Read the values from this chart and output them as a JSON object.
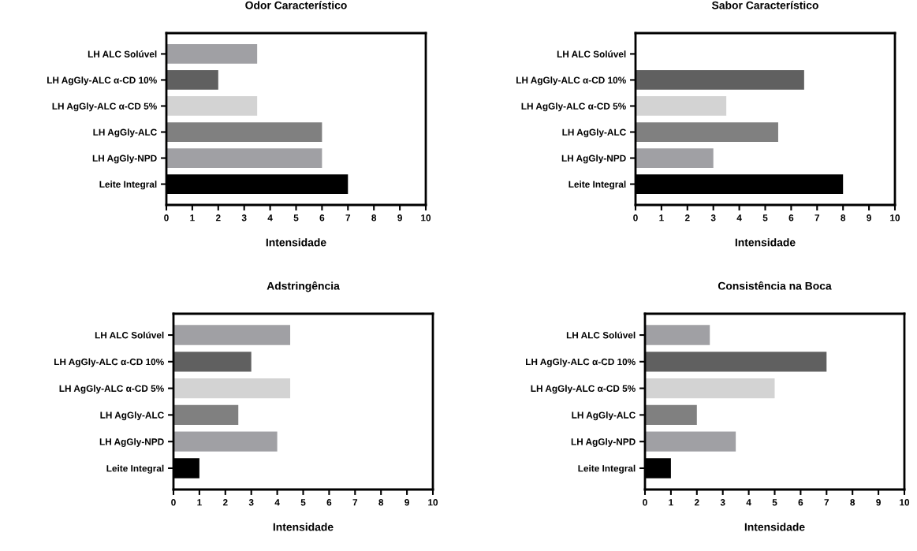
{
  "chart_data": [
    {
      "type": "bar",
      "orientation": "horizontal",
      "title": "Odor Característico",
      "xlabel": "Intensidade",
      "categories": [
        "LH ALC Solúvel",
        "LH AgGly-ALC α-CD 10%",
        "LH AgGly-ALC α-CD 5%",
        "LH AgGly-ALC",
        "LH AgGly-NPD",
        "Leite Integral"
      ],
      "values": [
        3.5,
        2,
        3.5,
        6,
        6,
        7
      ],
      "colors": [
        "#a0a0a4",
        "#606060",
        "#d3d3d3",
        "#808080",
        "#a0a0a4",
        "#000000"
      ],
      "xlim": [
        0,
        10
      ],
      "xticks": [
        0,
        1,
        2,
        3,
        4,
        5,
        6,
        7,
        8,
        9,
        10
      ],
      "grid": false,
      "legend": false
    },
    {
      "type": "bar",
      "orientation": "horizontal",
      "title": "Sabor Característico",
      "xlabel": "Intensidade",
      "categories": [
        "LH ALC Solúvel",
        "LH AgGly-ALC α-CD 10%",
        "LH AgGly-ALC α-CD 5%",
        "LH AgGly-ALC",
        "LH AgGly-NPD",
        "Leite Integral"
      ],
      "values": [
        0,
        6.5,
        3.5,
        5.5,
        3,
        8
      ],
      "colors": [
        "#a0a0a4",
        "#606060",
        "#d3d3d3",
        "#808080",
        "#a0a0a4",
        "#000000"
      ],
      "xlim": [
        0,
        10
      ],
      "xticks": [
        0,
        1,
        2,
        3,
        4,
        5,
        6,
        7,
        8,
        9,
        10
      ],
      "grid": false,
      "legend": false
    },
    {
      "type": "bar",
      "orientation": "horizontal",
      "title": "Adstringência",
      "xlabel": "Intensidade",
      "categories": [
        "LH ALC Solúvel",
        "LH AgGly-ALC α-CD 10%",
        "LH AgGly-ALC α-CD 5%",
        "LH AgGly-ALC",
        "LH AgGly-NPD",
        "Leite Integral"
      ],
      "values": [
        4.5,
        3,
        4.5,
        2.5,
        4,
        1
      ],
      "colors": [
        "#a0a0a4",
        "#606060",
        "#d3d3d3",
        "#808080",
        "#a0a0a4",
        "#000000"
      ],
      "xlim": [
        0,
        10
      ],
      "xticks": [
        0,
        1,
        2,
        3,
        4,
        5,
        6,
        7,
        8,
        9,
        10
      ],
      "grid": false,
      "legend": false
    },
    {
      "type": "bar",
      "orientation": "horizontal",
      "title": "Consistência na Boca",
      "xlabel": "Intensidade",
      "categories": [
        "LH ALC Solúvel",
        "LH AgGly-ALC α-CD 10%",
        "LH AgGly-ALC α-CD 5%",
        "LH AgGly-ALC",
        "LH AgGly-NPD",
        "Leite Integral"
      ],
      "values": [
        2.5,
        7,
        5,
        2,
        3.5,
        1
      ],
      "colors": [
        "#a0a0a4",
        "#606060",
        "#d3d3d3",
        "#808080",
        "#a0a0a4",
        "#000000"
      ],
      "xlim": [
        0,
        10
      ],
      "xticks": [
        0,
        1,
        2,
        3,
        4,
        5,
        6,
        7,
        8,
        9,
        10
      ],
      "grid": false,
      "legend": false
    }
  ]
}
